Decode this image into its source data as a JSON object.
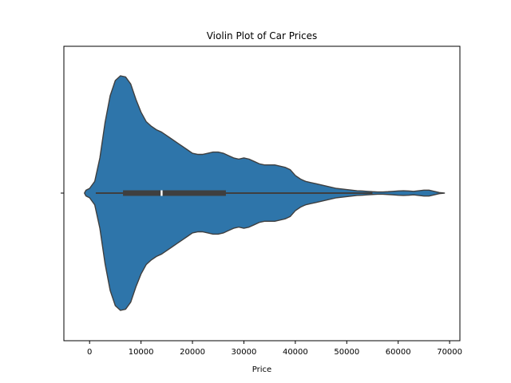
{
  "chart_data": {
    "type": "violin",
    "title": "Violin Plot of Car Prices",
    "xlabel": "Price",
    "ylabel": "",
    "xlim": [
      -5000,
      72000
    ],
    "xticks": [
      0,
      10000,
      20000,
      30000,
      40000,
      50000,
      60000,
      70000
    ],
    "xtick_labels": [
      "0",
      "10000",
      "20000",
      "30000",
      "40000",
      "50000",
      "60000",
      "70000"
    ],
    "grid": false,
    "colors": {
      "violin_fill": "#2e75aa",
      "violin_edge": "#3f3f3f",
      "box": "#3f3f3f",
      "median": "#ffffff"
    },
    "box": {
      "whisker_low": 1200,
      "q1": 6500,
      "median": 14000,
      "q3": 26500,
      "whisker_high": 55000
    },
    "density_profile": [
      [
        -1000,
        0.0
      ],
      [
        -700,
        0.025
      ],
      [
        0,
        0.04
      ],
      [
        1000,
        0.1
      ],
      [
        2000,
        0.3
      ],
      [
        3000,
        0.6
      ],
      [
        4000,
        0.83
      ],
      [
        5000,
        0.96
      ],
      [
        6000,
        1.0
      ],
      [
        7000,
        0.99
      ],
      [
        8000,
        0.93
      ],
      [
        9000,
        0.8
      ],
      [
        10000,
        0.69
      ],
      [
        11000,
        0.61
      ],
      [
        12000,
        0.57
      ],
      [
        13000,
        0.54
      ],
      [
        14000,
        0.52
      ],
      [
        15000,
        0.49
      ],
      [
        16000,
        0.46
      ],
      [
        17000,
        0.43
      ],
      [
        18000,
        0.4
      ],
      [
        19000,
        0.37
      ],
      [
        20000,
        0.34
      ],
      [
        21000,
        0.33
      ],
      [
        22000,
        0.33
      ],
      [
        23000,
        0.34
      ],
      [
        24000,
        0.35
      ],
      [
        25000,
        0.35
      ],
      [
        26000,
        0.34
      ],
      [
        27000,
        0.32
      ],
      [
        28000,
        0.3
      ],
      [
        29000,
        0.29
      ],
      [
        30000,
        0.3
      ],
      [
        31000,
        0.29
      ],
      [
        32000,
        0.27
      ],
      [
        33000,
        0.25
      ],
      [
        34000,
        0.24
      ],
      [
        35000,
        0.24
      ],
      [
        36000,
        0.24
      ],
      [
        37000,
        0.23
      ],
      [
        38000,
        0.22
      ],
      [
        39000,
        0.2
      ],
      [
        40000,
        0.15
      ],
      [
        41000,
        0.12
      ],
      [
        42000,
        0.1
      ],
      [
        43000,
        0.09
      ],
      [
        44000,
        0.08
      ],
      [
        45000,
        0.07
      ],
      [
        46000,
        0.06
      ],
      [
        47000,
        0.05
      ],
      [
        48000,
        0.04
      ],
      [
        49000,
        0.035
      ],
      [
        50000,
        0.03
      ],
      [
        51000,
        0.025
      ],
      [
        52000,
        0.02
      ],
      [
        53000,
        0.018
      ],
      [
        54000,
        0.015
      ],
      [
        55000,
        0.012
      ],
      [
        56000,
        0.01
      ],
      [
        57000,
        0.01
      ],
      [
        58000,
        0.012
      ],
      [
        59000,
        0.015
      ],
      [
        60000,
        0.018
      ],
      [
        61000,
        0.02
      ],
      [
        62000,
        0.018
      ],
      [
        63000,
        0.015
      ],
      [
        64000,
        0.02
      ],
      [
        65000,
        0.025
      ],
      [
        66000,
        0.025
      ],
      [
        67000,
        0.015
      ],
      [
        68000,
        0.005
      ],
      [
        69000,
        0.0
      ]
    ]
  }
}
